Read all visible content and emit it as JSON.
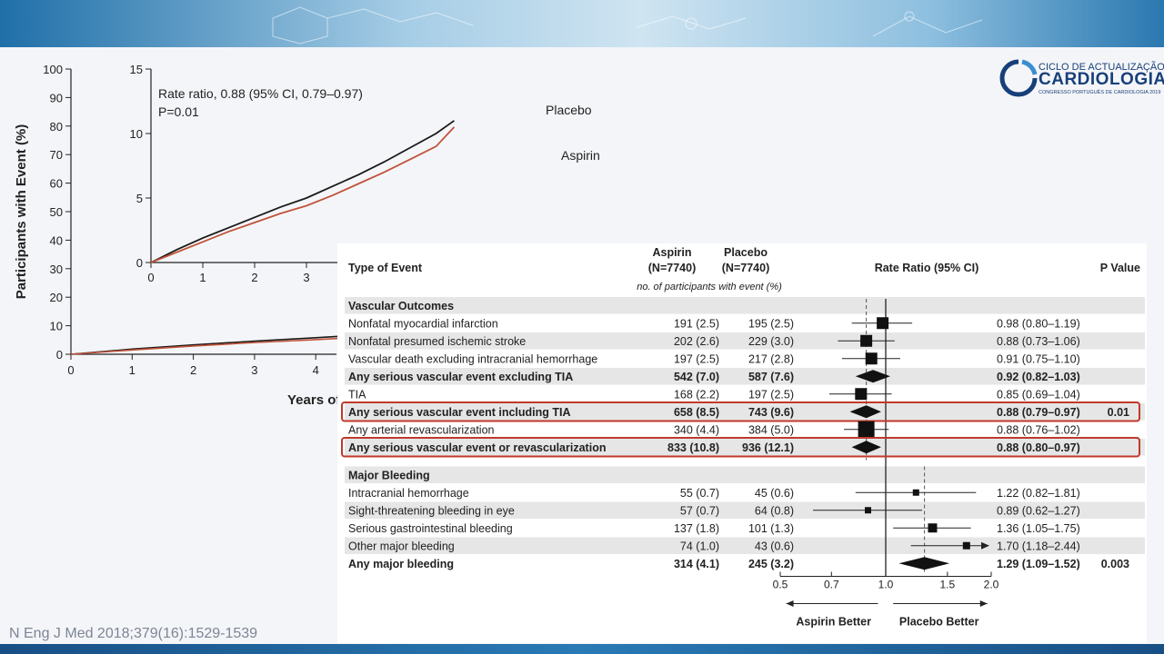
{
  "logo": {
    "line1": "CICLO DE ACTUALIZAÇÃO",
    "line2": "CARDIOLOGIA",
    "line3": "CONGRESSO PORTUGUÊS DE CARDIOLOGIA 2019"
  },
  "citation": "N Eng J Med 2018;379(16):1529-1539",
  "colors": {
    "placebo": "#1a1a1a",
    "aspirin": "#c0533a",
    "highlight": "#c0392b",
    "shade": "#e6e6e6"
  },
  "chart_data": [
    {
      "type": "line",
      "ylabel": "Participants with Event (%)",
      "xlabel": "Years of",
      "ylim": [
        0,
        100
      ],
      "xlim": [
        0,
        4.4
      ],
      "y_ticks": [
        "0",
        "10",
        "20",
        "30",
        "40",
        "50",
        "60",
        "70",
        "80",
        "90",
        "100"
      ],
      "x_ticks": [
        "0",
        "1",
        "2",
        "3",
        "4"
      ],
      "series": [
        {
          "name": "Placebo",
          "x": [
            0,
            1,
            2,
            3,
            4,
            4.4
          ],
          "y": [
            0,
            1.8,
            3.3,
            4.6,
            5.8,
            6.3
          ]
        },
        {
          "name": "Aspirin",
          "x": [
            0,
            1,
            2,
            3,
            4,
            4.4
          ],
          "y": [
            0,
            1.5,
            2.9,
            4.1,
            5.1,
            5.6
          ]
        }
      ]
    },
    {
      "type": "line",
      "annotation_line1": "Rate ratio, 0.88 (95% CI, 0.79–0.97)",
      "annotation_line2": "P=0.01",
      "ylim": [
        0,
        15
      ],
      "xlim": [
        0,
        5.6
      ],
      "y_ticks": [
        "0",
        "5",
        "10",
        "15"
      ],
      "x_ticks": [
        "0",
        "1",
        "2",
        "3"
      ],
      "series": [
        {
          "name": "Placebo",
          "x": [
            0,
            0.5,
            1,
            1.5,
            2,
            2.5,
            3,
            3.5,
            4,
            4.5,
            5,
            5.5,
            5.85
          ],
          "y": [
            0,
            1.0,
            1.9,
            2.7,
            3.5,
            4.3,
            5.0,
            5.9,
            6.8,
            7.8,
            8.9,
            10.0,
            11.0
          ]
        },
        {
          "name": "Aspirin",
          "x": [
            0,
            0.5,
            1,
            1.5,
            2,
            2.5,
            3,
            3.5,
            4,
            4.5,
            5,
            5.5,
            5.85
          ],
          "y": [
            0,
            0.8,
            1.6,
            2.4,
            3.1,
            3.8,
            4.4,
            5.2,
            6.1,
            7.0,
            8.0,
            9.0,
            10.5
          ]
        }
      ]
    },
    {
      "type": "table",
      "headers": {
        "event": "Type of Event",
        "aspirin": "Aspirin",
        "aspirin_n": "(N=7740)",
        "placebo": "Placebo",
        "placebo_n": "(N=7740)",
        "subheader": "no. of participants with event (%)",
        "ratio": "Rate Ratio (95% CI)",
        "pvalue": "P Value"
      },
      "x_ticks": [
        "0.5",
        "0.7",
        "1.0",
        "1.5",
        "2.0"
      ],
      "aspirin_better": "Aspirin Better",
      "placebo_better": "Placebo Better",
      "rows": [
        {
          "kind": "section",
          "label": "Vascular Outcomes"
        },
        {
          "label": "Nonfatal myocardial infarction",
          "aspirin": "191 (2.5)",
          "placebo": "195 (2.5)",
          "ci": "0.98 (0.80–1.19)",
          "p": "",
          "rr": 0.98,
          "lo": 0.8,
          "hi": 1.19,
          "size": 13
        },
        {
          "label": "Nonfatal presumed ischemic stroke",
          "aspirin": "202 (2.6)",
          "placebo": "229 (3.0)",
          "ci": "0.88 (0.73–1.06)",
          "p": "",
          "rr": 0.88,
          "lo": 0.73,
          "hi": 1.06,
          "size": 13
        },
        {
          "label": "Vascular death excluding intracranial hemorrhage",
          "aspirin": "197 (2.5)",
          "placebo": "217 (2.8)",
          "ci": "0.91 (0.75–1.10)",
          "p": "",
          "rr": 0.91,
          "lo": 0.75,
          "hi": 1.1,
          "size": 13
        },
        {
          "label": "Any serious vascular event excluding TIA",
          "aspirin": "542 (7.0)",
          "placebo": "587 (7.6)",
          "ci": "0.92 (0.82–1.03)",
          "p": "",
          "rr": 0.92,
          "lo": 0.82,
          "hi": 1.03,
          "bold": true,
          "diamond": true
        },
        {
          "label": "TIA",
          "aspirin": "168 (2.2)",
          "placebo": "197 (2.5)",
          "ci": "0.85 (0.69–1.04)",
          "p": "",
          "rr": 0.85,
          "lo": 0.69,
          "hi": 1.04,
          "size": 13
        },
        {
          "label": "Any serious vascular event including TIA",
          "aspirin": "658 (8.5)",
          "placebo": "743 (9.6)",
          "ci": "0.88 (0.79–0.97)",
          "p": "0.01",
          "rr": 0.88,
          "lo": 0.79,
          "hi": 0.97,
          "bold": true,
          "diamond": true,
          "highlight": true
        },
        {
          "label": "Any arterial revascularization",
          "aspirin": "340 (4.4)",
          "placebo": "384 (5.0)",
          "ci": "0.88 (0.76–1.02)",
          "p": "",
          "rr": 0.88,
          "lo": 0.76,
          "hi": 1.02,
          "size": 18
        },
        {
          "label": "Any serious vascular event or revascularization",
          "aspirin": "833 (10.8)",
          "placebo": "936 (12.1)",
          "ci": "0.88 (0.80–0.97)",
          "p": "",
          "rr": 0.88,
          "lo": 0.8,
          "hi": 0.97,
          "bold": true,
          "diamond": true,
          "highlight": true
        },
        {
          "kind": "spacer"
        },
        {
          "kind": "section",
          "label": "Major Bleeding"
        },
        {
          "label": "Intracranial hemorrhage",
          "aspirin": "55 (0.7)",
          "placebo": "45 (0.6)",
          "ci": "1.22 (0.82–1.81)",
          "p": "",
          "rr": 1.22,
          "lo": 0.82,
          "hi": 1.81,
          "size": 7
        },
        {
          "label": "Sight-threatening bleeding in eye",
          "aspirin": "57 (0.7)",
          "placebo": "64 (0.8)",
          "ci": "0.89 (0.62–1.27)",
          "p": "",
          "rr": 0.89,
          "lo": 0.62,
          "hi": 1.27,
          "size": 7
        },
        {
          "label": "Serious gastrointestinal bleeding",
          "aspirin": "137 (1.8)",
          "placebo": "101 (1.3)",
          "ci": "1.36 (1.05–1.75)",
          "p": "",
          "rr": 1.36,
          "lo": 1.05,
          "hi": 1.75,
          "size": 10
        },
        {
          "label": "Other major bleeding",
          "aspirin": "74 (1.0)",
          "placebo": "43 (0.6)",
          "ci": "1.70 (1.18–2.44)",
          "p": "",
          "rr": 1.7,
          "lo": 1.18,
          "hi": 2.44,
          "size": 8,
          "arrow": true
        },
        {
          "label": "Any major bleeding",
          "aspirin": "314 (4.1)",
          "placebo": "245 (3.2)",
          "ci": "1.29 (1.09–1.52)",
          "p": "0.003",
          "rr": 1.29,
          "lo": 1.09,
          "hi": 1.52,
          "bold": true,
          "diamond": true
        }
      ]
    }
  ]
}
